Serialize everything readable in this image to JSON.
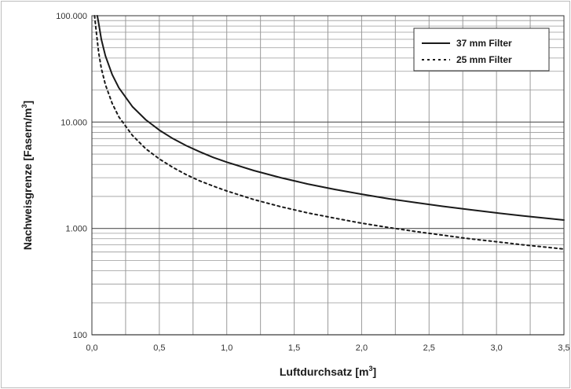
{
  "chart_data": {
    "type": "line",
    "x_scale": "linear",
    "y_scale": "log",
    "xlim": [
      0,
      3.5
    ],
    "ylim": [
      100,
      100000
    ],
    "grid": true,
    "legend_position": "top-right",
    "xlabel": "Luftdurchsatz [m",
    "xlabel_sup": "3",
    "xlabel_end": "]",
    "ylabel": "Nachweisgrenze  [Fasern/m",
    "ylabel_sup": "3",
    "ylabel_end": "]",
    "x_ticks": [
      {
        "value": 0,
        "label": "0,0"
      },
      {
        "value": 0.5,
        "label": "0,5"
      },
      {
        "value": 1.0,
        "label": "1,0"
      },
      {
        "value": 1.5,
        "label": "1,5"
      },
      {
        "value": 2.0,
        "label": "2,0"
      },
      {
        "value": 2.5,
        "label": "2,5"
      },
      {
        "value": 3.0,
        "label": "3,0"
      },
      {
        "value": 3.5,
        "label": "3,5"
      }
    ],
    "y_ticks": [
      {
        "value": 100,
        "label": "100"
      },
      {
        "value": 1000,
        "label": "1.000"
      },
      {
        "value": 10000,
        "label": "10.000"
      },
      {
        "value": 100000,
        "label": "100.000"
      }
    ],
    "series": [
      {
        "name": "37 mm Filter",
        "style": "solid",
        "color": "#1a1a1a",
        "points": [
          [
            0.04,
            100000
          ],
          [
            0.05,
            85000
          ],
          [
            0.07,
            60000
          ],
          [
            0.1,
            42000
          ],
          [
            0.15,
            28000
          ],
          [
            0.2,
            21000
          ],
          [
            0.3,
            14000
          ],
          [
            0.4,
            10500
          ],
          [
            0.5,
            8400
          ],
          [
            0.6,
            7000
          ],
          [
            0.7,
            6000
          ],
          [
            0.8,
            5250
          ],
          [
            0.9,
            4650
          ],
          [
            1.0,
            4200
          ],
          [
            1.2,
            3500
          ],
          [
            1.4,
            3000
          ],
          [
            1.6,
            2620
          ],
          [
            1.8,
            2330
          ],
          [
            2.0,
            2100
          ],
          [
            2.2,
            1900
          ],
          [
            2.4,
            1750
          ],
          [
            2.6,
            1615
          ],
          [
            2.8,
            1500
          ],
          [
            3.0,
            1400
          ],
          [
            3.2,
            1310
          ],
          [
            3.4,
            1235
          ],
          [
            3.5,
            1200
          ]
        ]
      },
      {
        "name": "25 mm Filter",
        "style": "dotted",
        "color": "#1a1a1a",
        "points": [
          [
            0.02,
            100000
          ],
          [
            0.03,
            75000
          ],
          [
            0.05,
            45000
          ],
          [
            0.07,
            32000
          ],
          [
            0.1,
            22500
          ],
          [
            0.15,
            15000
          ],
          [
            0.2,
            11200
          ],
          [
            0.3,
            7500
          ],
          [
            0.4,
            5600
          ],
          [
            0.5,
            4500
          ],
          [
            0.6,
            3750
          ],
          [
            0.7,
            3200
          ],
          [
            0.8,
            2800
          ],
          [
            0.9,
            2500
          ],
          [
            1.0,
            2250
          ],
          [
            1.2,
            1870
          ],
          [
            1.4,
            1600
          ],
          [
            1.6,
            1400
          ],
          [
            1.8,
            1250
          ],
          [
            2.0,
            1120
          ],
          [
            2.2,
            1020
          ],
          [
            2.4,
            935
          ],
          [
            2.6,
            865
          ],
          [
            2.8,
            800
          ],
          [
            3.0,
            750
          ],
          [
            3.2,
            700
          ],
          [
            3.4,
            660
          ],
          [
            3.5,
            640
          ]
        ]
      }
    ]
  }
}
